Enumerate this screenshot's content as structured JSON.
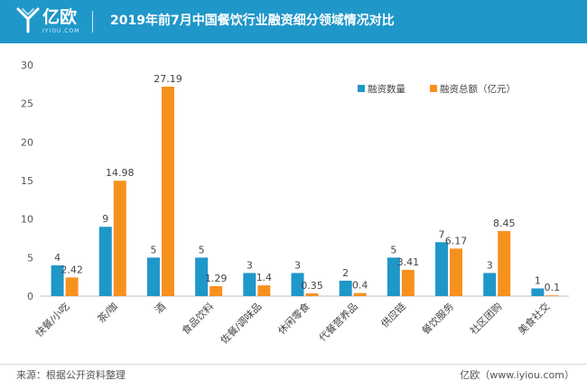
{
  "header": {
    "logo_text": "亿欧",
    "logo_sub": "IYIOU.COM",
    "title": "2019年前7月中国餐饮行业融资细分领域情况对比"
  },
  "footer": {
    "source": "来源：根据公开资料整理",
    "credit": "亿欧（www.iyiou.com）"
  },
  "colors": {
    "header": "#1f97c9",
    "series_count": "#1f97c9",
    "series_amount": "#f7911e"
  },
  "chart_data": {
    "type": "bar",
    "categories": [
      "快餐/小吃",
      "茶/咖",
      "酒",
      "食品饮料",
      "佐餐/调味品",
      "休闲零食",
      "代餐营养品",
      "供应链",
      "餐饮服务",
      "社区团购",
      "美食社交"
    ],
    "series": [
      {
        "name": "融资数量",
        "values": [
          4,
          9,
          5,
          5,
          3,
          3,
          2,
          5,
          7,
          3,
          1
        ]
      },
      {
        "name": "融资总额（亿元）",
        "values": [
          2.42,
          14.98,
          27.19,
          1.29,
          1.4,
          0.35,
          0.4,
          3.41,
          6.17,
          8.45,
          0.1
        ]
      }
    ],
    "title": "",
    "xlabel": "",
    "ylabel": "",
    "ylim": [
      0,
      30
    ],
    "yticks": [
      0,
      5,
      10,
      15,
      20,
      25,
      30
    ],
    "grid": false,
    "legend": "top-right"
  }
}
